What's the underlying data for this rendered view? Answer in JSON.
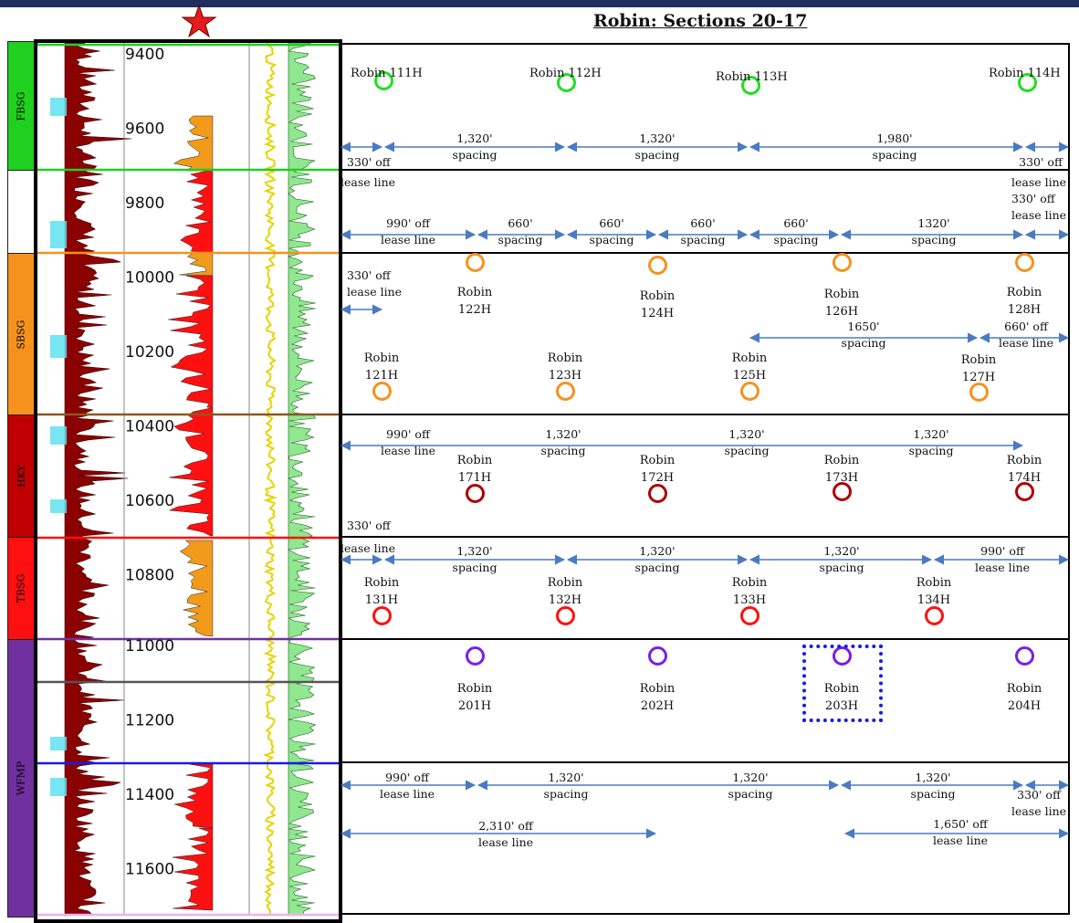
{
  "title": "Robin: Sections 20-17",
  "colors": {
    "header": "#1e2e5e",
    "arrow": "#4a7ac4",
    "highlight": "#1a1ae6"
  },
  "bands": [
    {
      "label": "FBSG",
      "color": "#1fd01f"
    },
    {
      "label": "",
      "color": "#ffffff"
    },
    {
      "label": "SBSG",
      "color": "#f5921e"
    },
    {
      "label": "HKY",
      "color": "#c00000"
    },
    {
      "label": "TBSG",
      "color": "#ff1010"
    },
    {
      "label": "WFMP",
      "color": "#7030a0"
    }
  ],
  "depth_ticks": [
    "9400",
    "9600",
    "9800",
    "10000",
    "10200",
    "10400",
    "10600",
    "10800",
    "11000",
    "11200",
    "11400",
    "11600"
  ],
  "wells": [
    {
      "name": "Robin 111H",
      "color": "#22dd22"
    },
    {
      "name": "Robin 112H",
      "color": "#22dd22"
    },
    {
      "name": "Robin 113H",
      "color": "#22dd22"
    },
    {
      "name": "Robin 114H",
      "color": "#22dd22"
    },
    {
      "name": "Robin\n122H",
      "color": "#f5921e"
    },
    {
      "name": "Robin\n124H",
      "color": "#f5921e"
    },
    {
      "name": "Robin\n126H",
      "color": "#f5921e"
    },
    {
      "name": "Robin\n128H",
      "color": "#f5921e"
    },
    {
      "name": "Robin\n121H",
      "color": "#f5921e"
    },
    {
      "name": "Robin\n123H",
      "color": "#f5921e"
    },
    {
      "name": "Robin\n125H",
      "color": "#f5921e"
    },
    {
      "name": "Robin\n127H",
      "color": "#f5921e"
    },
    {
      "name": "Robin\n171H",
      "color": "#b00000"
    },
    {
      "name": "Robin\n172H",
      "color": "#b00000"
    },
    {
      "name": "Robin\n173H",
      "color": "#b00000"
    },
    {
      "name": "Robin\n174H",
      "color": "#b00000"
    },
    {
      "name": "Robin\n131H",
      "color": "#ff1010"
    },
    {
      "name": "Robin\n132H",
      "color": "#ff1010"
    },
    {
      "name": "Robin\n133H",
      "color": "#ff1010"
    },
    {
      "name": "Robin\n134H",
      "color": "#ff1010"
    },
    {
      "name": "Robin\n201H",
      "color": "#7a1fe6"
    },
    {
      "name": "Robin\n202H",
      "color": "#7a1fe6"
    },
    {
      "name": "Robin\n203H",
      "color": "#7a1fe6"
    },
    {
      "name": "Robin\n204H",
      "color": "#7a1fe6"
    }
  ],
  "annotations": [
    "1,320'\nspacing",
    "1,320'\nspacing",
    "1,980'\nspacing",
    "330' off",
    "330' off",
    "lease line",
    "lease line\n330' off\nlease line",
    "990' off\nlease line",
    "660'\nspacing",
    "660'\nspacing",
    "660'\nspacing",
    "660'\nspacing",
    "1320'\nspacing",
    "330' off\nlease line",
    "1650'\nspacing",
    "660' off\nlease line",
    "990' off\nlease line",
    "1,320'\nspacing",
    "1,320'\nspacing",
    "1,320'\nspacing",
    "330' off",
    "lease line",
    "1,320'\nspacing",
    "1,320'\nspacing",
    "1,320'\nspacing",
    "990' off\nlease line",
    "990' off\nlease line",
    "1,320'\nspacing",
    "1,320'\nspacing",
    "1,320'\nspacing",
    "330' off\nlease line",
    "2,310' off\nlease line",
    "1,650' off\nlease line"
  ]
}
